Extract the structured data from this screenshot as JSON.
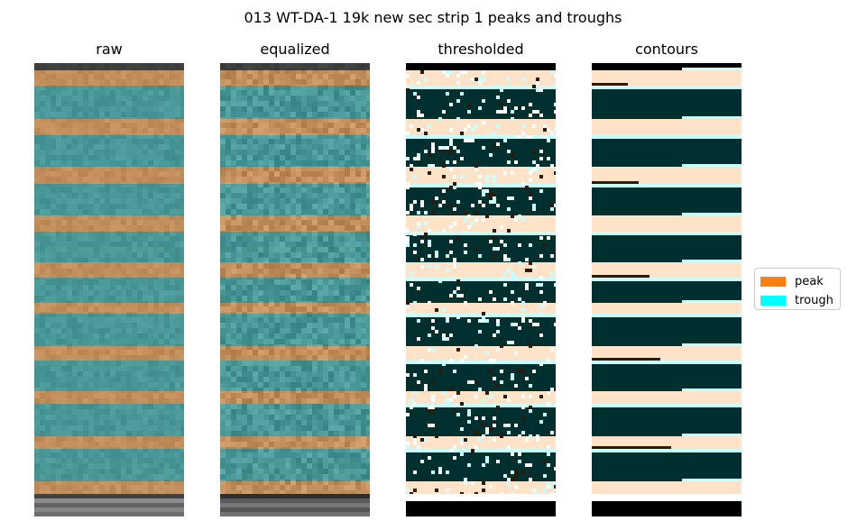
{
  "chart_data": {
    "type": "heatmap",
    "title": "013 WT-DA-1 19k new sec strip 1 peaks and troughs",
    "panels": [
      {
        "id": "raw",
        "title": "raw"
      },
      {
        "id": "equalized",
        "title": "equalized"
      },
      {
        "id": "thresholded",
        "title": "thresholded"
      },
      {
        "id": "contours",
        "title": "contours"
      }
    ],
    "legend": {
      "placement": "right",
      "entries": [
        {
          "label": "peak",
          "color": "#ff7f0e"
        },
        {
          "label": "trough",
          "color": "#00ffff"
        }
      ]
    },
    "colors": {
      "peak_overlay": "#e09a55",
      "trough_overlay": "#3aa6a6",
      "thresh_dark": "#002f2f",
      "thresh_light": "#ffe3c8",
      "thresh_cyan": "#c8ffff",
      "thresh_brown": "#2e1a06",
      "black": "#000000",
      "white": "#ffffff"
    }
  }
}
